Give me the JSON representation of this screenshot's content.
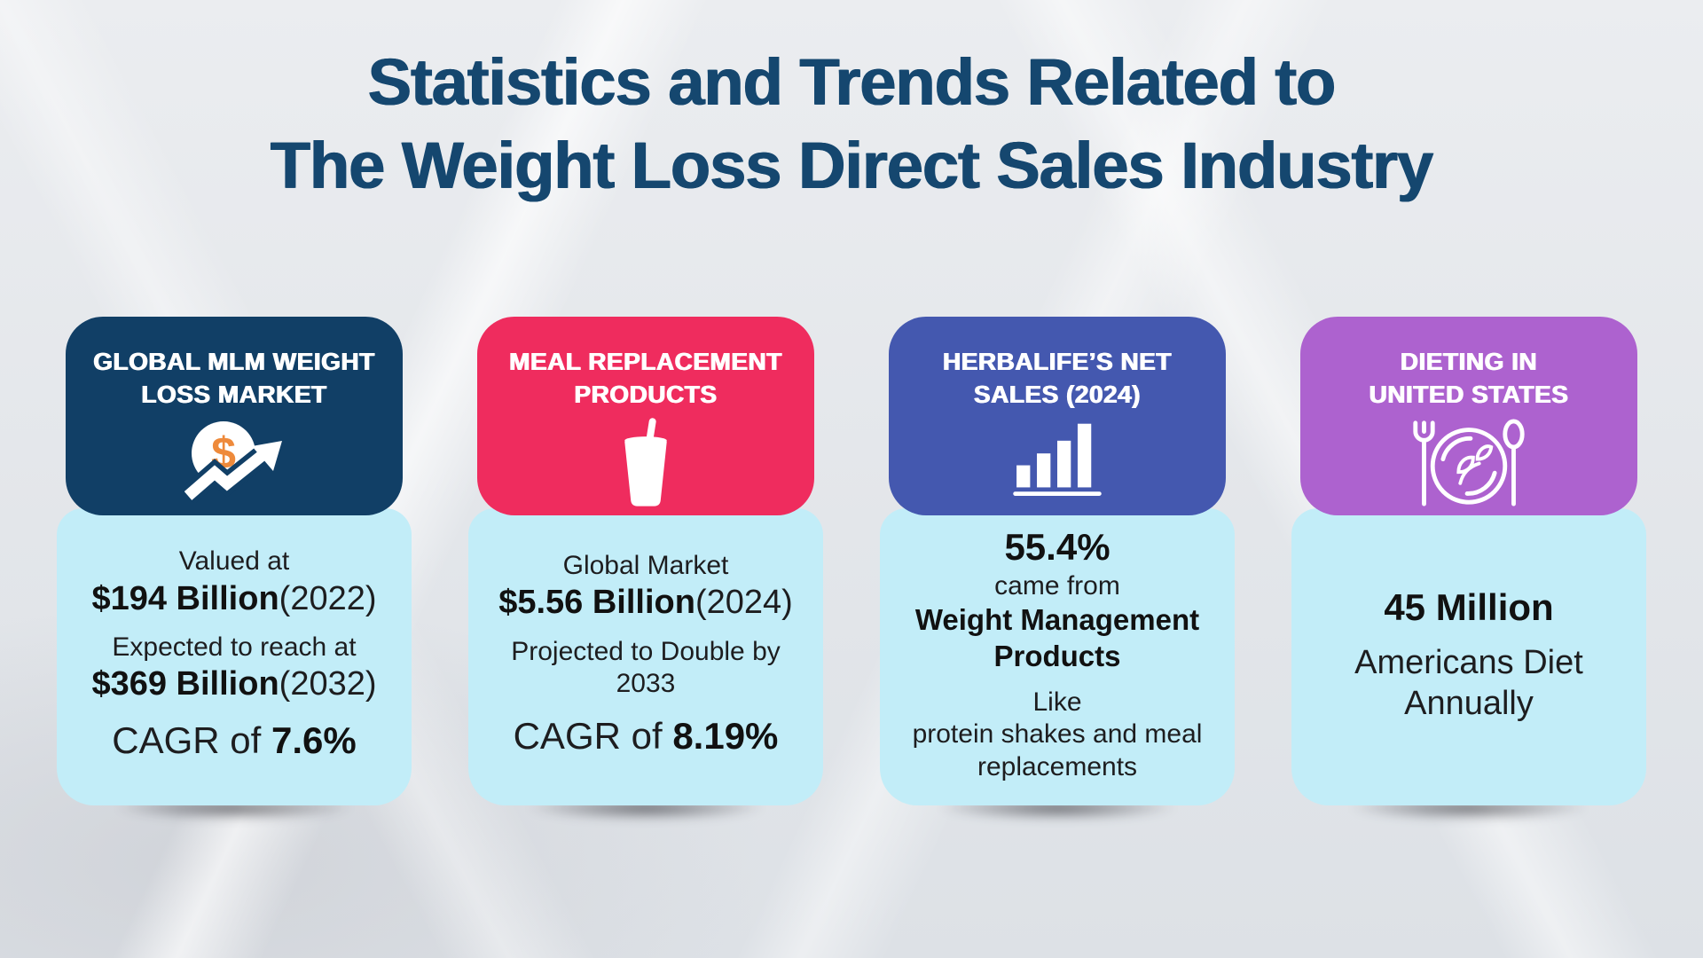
{
  "title": {
    "line1": "Statistics and Trends Related to",
    "line2": "The Weight Loss Direct Sales Industry",
    "color": "#15476f"
  },
  "body_bg": "#c2edf8",
  "accent_orange": "#ee8a3b",
  "cards": [
    {
      "id": "global-mlm-weight-loss-market",
      "header": {
        "line1": "GLOBAL MLM WEIGHT",
        "line2": "LOSS MARKET",
        "color": "#113f66",
        "icon": "coin-growth-arrow-icon"
      },
      "body_lines": [
        {
          "size": "md",
          "gap": false,
          "segments": [
            {
              "text": "Valued at",
              "bold": false
            }
          ]
        },
        {
          "size": "lg",
          "gap": false,
          "segments": [
            {
              "text": "$194 Billion",
              "bold": true
            },
            {
              "text": "(2022)",
              "bold": false
            }
          ]
        },
        {
          "size": "md",
          "gap": true,
          "segments": [
            {
              "text": "Expected to reach at",
              "bold": false
            }
          ]
        },
        {
          "size": "lg",
          "gap": false,
          "segments": [
            {
              "text": "$369 Billion",
              "bold": true
            },
            {
              "text": "(2032)",
              "bold": false
            }
          ]
        },
        {
          "size": "xl",
          "gap": true,
          "segments": [
            {
              "text": "CAGR of ",
              "bold": false
            },
            {
              "text": "7.6%",
              "bold": true
            }
          ]
        }
      ]
    },
    {
      "id": "meal-replacement-products",
      "header": {
        "line1": "MEAL REPLACEMENT",
        "line2": "PRODUCTS",
        "color": "#ef2c5e",
        "icon": "shake-glass-icon"
      },
      "body_lines": [
        {
          "size": "md",
          "gap": false,
          "segments": [
            {
              "text": "Global Market",
              "bold": false
            }
          ]
        },
        {
          "size": "lg",
          "gap": false,
          "segments": [
            {
              "text": "$5.56 Billion",
              "bold": true
            },
            {
              "text": "(2024)",
              "bold": false
            }
          ]
        },
        {
          "size": "md",
          "gap": true,
          "segments": [
            {
              "text": "Projected to Double by",
              "bold": false
            }
          ]
        },
        {
          "size": "md",
          "gap": false,
          "segments": [
            {
              "text": "2033",
              "bold": false
            }
          ]
        },
        {
          "size": "xl",
          "gap": true,
          "segments": [
            {
              "text": "CAGR of ",
              "bold": false
            },
            {
              "text": "8.19%",
              "bold": true
            }
          ]
        }
      ]
    },
    {
      "id": "herbalife-net-sales-2024",
      "header": {
        "line1": "HERBALIFE’S NET",
        "line2": "SALES (2024)",
        "color": "#4458af",
        "icon": "bar-chart-icon"
      },
      "body_lines": [
        {
          "size": "xl",
          "gap": false,
          "segments": [
            {
              "text": "55.4%",
              "bold": true
            }
          ]
        },
        {
          "size": "md",
          "gap": false,
          "segments": [
            {
              "text": "came from",
              "bold": false
            }
          ]
        },
        {
          "size": "mm",
          "gap": false,
          "segments": [
            {
              "text": "Weight Management",
              "bold": true
            }
          ]
        },
        {
          "size": "mm",
          "gap": false,
          "segments": [
            {
              "text": "Products",
              "bold": true
            }
          ]
        },
        {
          "size": "md",
          "gap": true,
          "segments": [
            {
              "text": "Like",
              "bold": false
            }
          ]
        },
        {
          "size": "md",
          "gap": false,
          "segments": [
            {
              "text": "protein shakes and meal",
              "bold": false
            }
          ]
        },
        {
          "size": "md",
          "gap": false,
          "segments": [
            {
              "text": "replacements",
              "bold": false
            }
          ]
        }
      ]
    },
    {
      "id": "dieting-in-united-states",
      "header": {
        "line1": "DIETING IN",
        "line2": "UNITED STATES",
        "color": "#ad62cf",
        "icon": "plate-fork-spoon-icon"
      },
      "body_lines": [
        {
          "size": "xl",
          "gap": false,
          "segments": [
            {
              "text": "45 Million",
              "bold": true
            }
          ]
        },
        {
          "size": "lg",
          "gap": true,
          "segments": [
            {
              "text": "Americans Diet",
              "bold": false
            }
          ]
        },
        {
          "size": "lg",
          "gap": false,
          "segments": [
            {
              "text": "Annually",
              "bold": false
            }
          ]
        }
      ]
    }
  ]
}
